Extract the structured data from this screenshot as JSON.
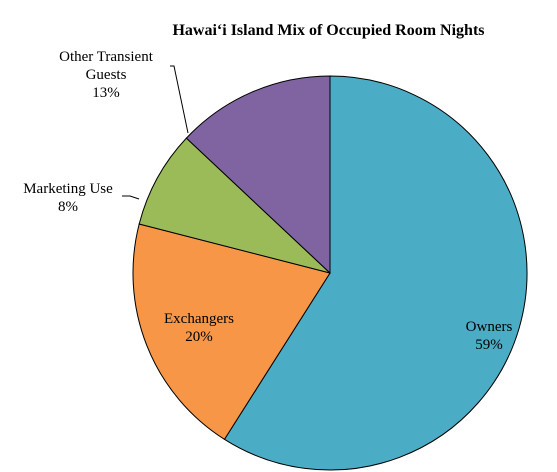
{
  "chart_data": {
    "type": "pie",
    "title": "Hawai‘i Island Mix of Occupied Room Nights",
    "categories": [
      "Owners",
      "Exchangers",
      "Marketing Use",
      "Other Transient Guests"
    ],
    "values": [
      59,
      20,
      8,
      13
    ],
    "value_labels": [
      "59%",
      "20%",
      "8%",
      "13%"
    ],
    "colors": [
      "#4bacc6",
      "#f79646",
      "#9bbb59",
      "#8064a2"
    ]
  }
}
